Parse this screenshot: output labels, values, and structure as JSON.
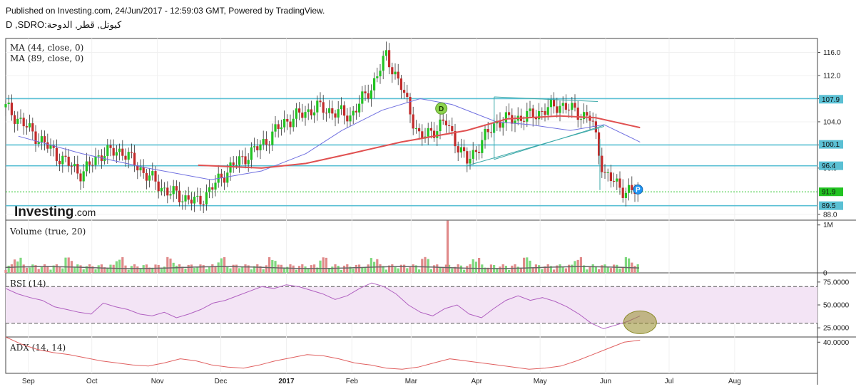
{
  "header": {
    "published": "Published on Investing.com, 24/Jun/2017 - 12:59:03 GMT, Powered by TradingView.",
    "symbol": "D ,SDRO:كيوتل, قطر, الدوحة"
  },
  "brand": {
    "name": "Investing",
    "suffix": ".com"
  },
  "chart_data": {
    "type": "candlestick",
    "interval": "D",
    "panes": [
      {
        "id": "price",
        "legend": [
          "MA (44, close, 0)",
          "MA (89, close, 0)"
        ],
        "y_ticks": [
          "116.0",
          "112.0",
          "108.0",
          "104.0",
          "100.0",
          "96.0",
          "88.0"
        ],
        "ylim": [
          87,
          118.4
        ],
        "price_tags": [
          {
            "label": "107.9",
            "value": 107.9,
            "color": "#5bc0d4"
          },
          {
            "label": "100.1",
            "value": 100.1,
            "color": "#5bc0d4"
          },
          {
            "label": "96.4",
            "value": 96.4,
            "color": "#5bc0d4"
          },
          {
            "label": "91.9",
            "value": 91.9,
            "color": "#22c322"
          },
          {
            "label": "89.5",
            "value": 89.5,
            "color": "#5bc0d4"
          }
        ],
        "horizontal_levels": [
          108.0,
          100.0,
          96.4,
          89.5
        ],
        "last_price_line": 91.9,
        "markers": [
          {
            "label": "D",
            "date": "2017-03-20",
            "color": "#8ed44e"
          },
          {
            "label": "P",
            "date": "2017-06-21",
            "color": "#2196f3"
          }
        ],
        "candles_ohlc_sample": [
          {
            "date": "2016-08-26",
            "close": 106.5
          },
          {
            "date": "2016-09-08",
            "close": 102.0
          },
          {
            "date": "2016-09-20",
            "close": 98.0
          },
          {
            "date": "2016-10-01",
            "close": 95.0
          },
          {
            "date": "2016-10-10",
            "close": 98.5
          },
          {
            "date": "2016-10-20",
            "close": 99.0
          },
          {
            "date": "2016-10-31",
            "close": 95.0
          },
          {
            "date": "2016-11-10",
            "close": 92.0
          },
          {
            "date": "2016-11-25",
            "close": 90.0
          },
          {
            "date": "2016-12-10",
            "close": 96.0
          },
          {
            "date": "2016-12-25",
            "close": 100.0
          },
          {
            "date": "2017-01-05",
            "close": 104.0
          },
          {
            "date": "2017-01-20",
            "close": 106.5
          },
          {
            "date": "2017-02-05",
            "close": 105.0
          },
          {
            "date": "2017-02-15",
            "close": 110.0
          },
          {
            "date": "2017-02-22",
            "close": 115.5
          },
          {
            "date": "2017-03-01",
            "close": 110.0
          },
          {
            "date": "2017-03-10",
            "close": 101.0
          },
          {
            "date": "2017-03-22",
            "close": 104.0
          },
          {
            "date": "2017-04-01",
            "close": 97.0
          },
          {
            "date": "2017-04-15",
            "close": 104.0
          },
          {
            "date": "2017-05-01",
            "close": 105.0
          },
          {
            "date": "2017-05-15",
            "close": 107.0
          },
          {
            "date": "2017-05-30",
            "close": 104.5
          },
          {
            "date": "2017-06-05",
            "close": 95.0
          },
          {
            "date": "2017-06-15",
            "close": 92.0
          },
          {
            "date": "2017-06-22",
            "close": 91.9
          }
        ],
        "series": [
          {
            "name": "MA (44, close, 0)",
            "color": "#7070e0",
            "points": [
              {
                "date": "2016-09-01",
                "value": 101.5
              },
              {
                "date": "2016-10-01",
                "value": 98.5
              },
              {
                "date": "2016-11-01",
                "value": 96.0
              },
              {
                "date": "2016-12-01",
                "value": 94.0
              },
              {
                "date": "2016-12-25",
                "value": 95.5
              },
              {
                "date": "2017-01-15",
                "value": 98.5
              },
              {
                "date": "2017-02-01",
                "value": 102.5
              },
              {
                "date": "2017-02-20",
                "value": 106.0
              },
              {
                "date": "2017-03-10",
                "value": 108.0
              },
              {
                "date": "2017-03-25",
                "value": 107.0
              },
              {
                "date": "2017-04-15",
                "value": 104.0
              },
              {
                "date": "2017-05-01",
                "value": 103.5
              },
              {
                "date": "2017-05-20",
                "value": 102.5
              },
              {
                "date": "2017-06-05",
                "value": 103.5
              },
              {
                "date": "2017-06-22",
                "value": 100.5
              }
            ]
          },
          {
            "name": "MA (89, close, 0)",
            "color": "#e05050",
            "points": [
              {
                "date": "2016-11-25",
                "value": 96.5
              },
              {
                "date": "2016-12-25",
                "value": 96.0
              },
              {
                "date": "2017-01-15",
                "value": 96.8
              },
              {
                "date": "2017-02-05",
                "value": 98.5
              },
              {
                "date": "2017-03-01",
                "value": 100.5
              },
              {
                "date": "2017-04-01",
                "value": 102.5
              },
              {
                "date": "2017-04-20",
                "value": 104.5
              },
              {
                "date": "2017-05-15",
                "value": 105.0
              },
              {
                "date": "2017-06-01",
                "value": 104.7
              },
              {
                "date": "2017-06-22",
                "value": 103.0
              }
            ]
          }
        ]
      },
      {
        "id": "volume",
        "legend": [
          "Volume (true, 20)"
        ],
        "y_ticks": [
          "1M",
          "0"
        ],
        "ylim": [
          0,
          1100000
        ],
        "spike": {
          "date": "2017-03-23",
          "value": 1150000
        }
      },
      {
        "id": "rsi",
        "legend": [
          "RSI (14)"
        ],
        "y_ticks": [
          "75.0000",
          "50.0000",
          "25.0000"
        ],
        "ylim": [
          15,
          85
        ],
        "bands": [
          70,
          30
        ],
        "series": [
          {
            "name": "RSI (14)",
            "color": "#b060c0",
            "values": [
              68,
              62,
              58,
              55,
              48,
              45,
              42,
              40,
              52,
              48,
              45,
              40,
              38,
              42,
              36,
              40,
              45,
              52,
              55,
              60,
              65,
              70,
              68,
              72,
              70,
              66,
              62,
              56,
              60,
              68,
              74,
              70,
              62,
              50,
              42,
              38,
              46,
              50,
              40,
              36,
              46,
              55,
              60,
              55,
              58,
              54,
              48,
              40,
              30,
              24,
              28,
              32,
              38
            ]
          }
        ]
      },
      {
        "id": "adx",
        "legend": [
          "ADX (14, 14)"
        ],
        "y_ticks": [
          "40.0000"
        ],
        "ylim": [
          10,
          45
        ],
        "series": [
          {
            "name": "ADX (14, 14)",
            "color": "#e06060",
            "values": [
              45,
              38,
              33,
              30,
              28,
              25,
              22,
              20,
              18,
              17,
              20,
              24,
              22,
              18,
              16,
              15,
              18,
              22,
              25,
              28,
              27,
              24,
              20,
              18,
              15,
              14,
              16,
              20,
              24,
              22,
              20,
              18,
              16,
              14,
              15,
              17,
              22,
              28,
              34,
              40,
              42
            ]
          }
        ]
      }
    ],
    "x_ticks": [
      "Sep",
      "Oct",
      "Nov",
      "Dec",
      "2017",
      "Feb",
      "Mar",
      "Apr",
      "May",
      "Jun",
      "Jul",
      "Aug"
    ]
  },
  "colors": {
    "up": "#22c322",
    "down": "#c22a2a",
    "level": "#5bc0d4",
    "rsi_fill": "#f3e4f5",
    "grid": "#f0f0f0"
  }
}
